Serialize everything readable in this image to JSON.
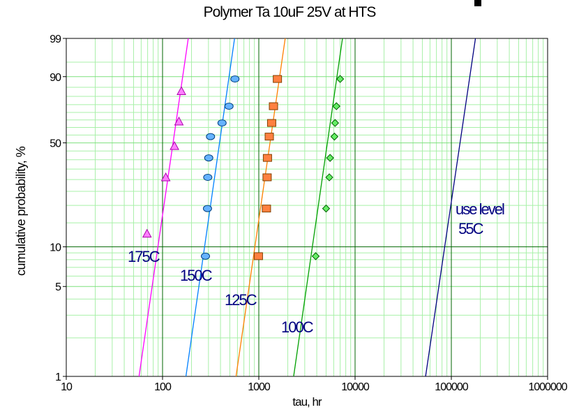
{
  "chart_data": {
    "type": "scatter",
    "title": "Polymer Ta 10uF 25V at HTS",
    "xlabel": "tau, hr",
    "ylabel": "cumulative probability, %",
    "x_scale": "log",
    "y_scale": "weibull",
    "xlim": [
      10,
      1000000
    ],
    "ylim": [
      1,
      99
    ],
    "x_ticks": [
      {
        "value": 10,
        "label": "10"
      },
      {
        "value": 100,
        "label": "100"
      },
      {
        "value": 1000,
        "label": "1000"
      },
      {
        "value": 10000,
        "label": "10000"
      },
      {
        "value": 100000,
        "label": "100000"
      },
      {
        "value": 1000000,
        "label": "1000000"
      }
    ],
    "y_ticks": [
      {
        "value": 1,
        "label": "1"
      },
      {
        "value": 5,
        "label": "5"
      },
      {
        "value": 10,
        "label": "10"
      },
      {
        "value": 50,
        "label": "50"
      },
      {
        "value": 90,
        "label": "90"
      },
      {
        "value": 99,
        "label": "99"
      }
    ],
    "grid": true,
    "series": [
      {
        "name": "175C",
        "color": "#ff00ff",
        "fill": "#ff80ff",
        "marker": "triangle",
        "points": [
          [
            69,
            12.5
          ],
          [
            108,
            31
          ],
          [
            133,
            48
          ],
          [
            148,
            64
          ],
          [
            157,
            83
          ]
        ],
        "fit_line": [
          [
            57,
            1
          ],
          [
            185,
            99
          ]
        ]
      },
      {
        "name": "150C",
        "color": "#0080ff",
        "fill": "#66b3ff",
        "marker": "circle",
        "points": [
          [
            279,
            8.5
          ],
          [
            293,
            19
          ],
          [
            295,
            31
          ],
          [
            302,
            41
          ],
          [
            315,
            54
          ],
          [
            415,
            63
          ],
          [
            490,
            74
          ],
          [
            565,
            89
          ]
        ],
        "fit_line": [
          [
            175,
            1
          ],
          [
            560,
            99
          ]
        ]
      },
      {
        "name": "125C",
        "color": "#ff8000",
        "fill": "#ff8040",
        "marker": "square",
        "points": [
          [
            990,
            8.5
          ],
          [
            1200,
            19
          ],
          [
            1220,
            31
          ],
          [
            1230,
            41
          ],
          [
            1285,
            54
          ],
          [
            1360,
            63
          ],
          [
            1420,
            74
          ],
          [
            1560,
            89
          ]
        ],
        "fit_line": [
          [
            580,
            1
          ],
          [
            1880,
            99
          ]
        ]
      },
      {
        "name": "100C",
        "color": "#00a000",
        "fill": "#66ee66",
        "marker": "diamond",
        "points": [
          [
            3900,
            8.5
          ],
          [
            5000,
            19
          ],
          [
            5400,
            31
          ],
          [
            5500,
            41
          ],
          [
            6100,
            54
          ],
          [
            6200,
            63
          ],
          [
            6400,
            74
          ],
          [
            7000,
            89
          ]
        ],
        "fit_line": [
          [
            2300,
            1
          ],
          [
            7400,
            99
          ]
        ]
      },
      {
        "name": "55C",
        "color": "#000080",
        "fill": "#000080",
        "marker": "none",
        "points": [],
        "fit_line": [
          [
            54000,
            1
          ],
          [
            178000,
            99
          ]
        ]
      }
    ],
    "annotations": [
      "175C",
      "150C",
      "125C",
      "100C",
      "use level\n 55C"
    ]
  }
}
